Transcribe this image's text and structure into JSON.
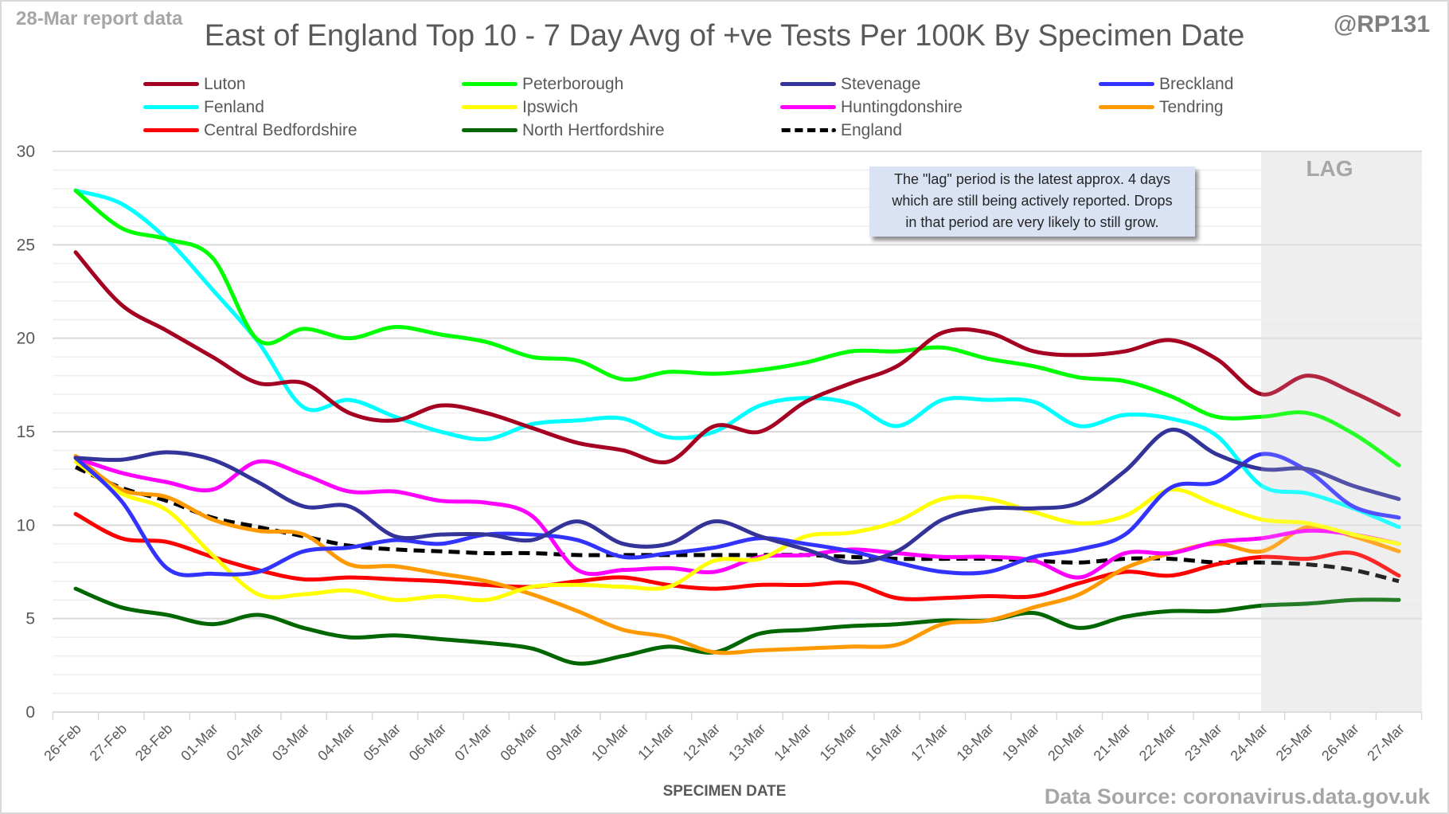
{
  "header": {
    "report_label": "28-Mar report data",
    "handle": "@RP131",
    "source": "Data Source: coronavirus.data.gov.uk"
  },
  "note": {
    "lines": [
      "The \"lag\" period is the latest approx. 4 days",
      "which are still being actively reported.  Drops",
      "in that period are very likely to still grow."
    ]
  },
  "chart_data": {
    "type": "line",
    "title": "East of England Top 10 - 7 Day Avg of +ve Tests Per 100K By Specimen Date",
    "xlabel": "SPECIMEN DATE",
    "ylabel": "",
    "ylim": [
      0,
      30
    ],
    "yticks": [
      0,
      5,
      10,
      15,
      20,
      25,
      30
    ],
    "grid": true,
    "minor_grid_step": 1,
    "legend_position": "top",
    "lag_region": {
      "label": "LAG",
      "start": "24-Mar",
      "end": "27-Mar",
      "color": "#ebebeb"
    },
    "x": [
      "26-Feb",
      "27-Feb",
      "28-Feb",
      "01-Mar",
      "02-Mar",
      "03-Mar",
      "04-Mar",
      "05-Mar",
      "06-Mar",
      "07-Mar",
      "08-Mar",
      "09-Mar",
      "10-Mar",
      "11-Mar",
      "12-Mar",
      "13-Mar",
      "14-Mar",
      "15-Mar",
      "16-Mar",
      "17-Mar",
      "18-Mar",
      "19-Mar",
      "20-Mar",
      "21-Mar",
      "22-Mar",
      "23-Mar",
      "24-Mar",
      "25-Mar",
      "26-Mar",
      "27-Mar"
    ],
    "series": [
      {
        "name": "Luton",
        "color": "#a50021",
        "dashed": false,
        "values": [
          24.6,
          21.8,
          20.4,
          19.0,
          17.6,
          17.6,
          16.0,
          15.6,
          16.4,
          16.0,
          15.2,
          14.4,
          14.0,
          13.4,
          15.3,
          15.0,
          16.6,
          17.6,
          18.5,
          20.3,
          20.3,
          19.3,
          19.1,
          19.3,
          19.9,
          18.9,
          17.0,
          18.0,
          17.1,
          15.9
        ]
      },
      {
        "name": "Peterborough",
        "color": "#00ff00",
        "dashed": false,
        "values": [
          27.9,
          25.9,
          25.3,
          24.3,
          19.9,
          20.5,
          20.0,
          20.6,
          20.2,
          19.8,
          19.0,
          18.8,
          17.8,
          18.2,
          18.1,
          18.3,
          18.7,
          19.3,
          19.3,
          19.5,
          18.9,
          18.5,
          17.9,
          17.7,
          16.9,
          15.8,
          15.8,
          16.0,
          14.9,
          13.2
        ]
      },
      {
        "name": "Stevenage",
        "color": "#333399",
        "dashed": false,
        "values": [
          13.6,
          13.5,
          13.9,
          13.5,
          12.3,
          11.0,
          11.0,
          9.4,
          9.5,
          9.5,
          9.2,
          10.2,
          9.0,
          9.0,
          10.2,
          9.4,
          8.7,
          8.0,
          8.6,
          10.3,
          10.9,
          10.9,
          11.2,
          12.9,
          15.1,
          13.8,
          13.0,
          13.0,
          12.1,
          11.4
        ]
      },
      {
        "name": "Breckland",
        "color": "#3333ff",
        "dashed": false,
        "values": [
          13.6,
          11.3,
          7.7,
          7.4,
          7.5,
          8.6,
          8.8,
          9.2,
          9.0,
          9.5,
          9.5,
          9.2,
          8.3,
          8.5,
          8.8,
          9.3,
          9.0,
          8.6,
          8.0,
          7.5,
          7.5,
          8.3,
          8.7,
          9.5,
          12.0,
          12.3,
          13.8,
          12.9,
          11.0,
          10.4
        ]
      },
      {
        "name": "Fenland",
        "color": "#00ffff",
        "dashed": false,
        "values": [
          27.9,
          27.2,
          25.3,
          22.6,
          19.8,
          16.3,
          16.7,
          15.8,
          15.0,
          14.6,
          15.4,
          15.6,
          15.7,
          14.7,
          15.0,
          16.4,
          16.8,
          16.5,
          15.3,
          16.7,
          16.7,
          16.6,
          15.3,
          15.9,
          15.7,
          14.8,
          12.1,
          11.7,
          10.9,
          9.9
        ]
      },
      {
        "name": "Ipswich",
        "color": "#ffff00",
        "dashed": false,
        "values": [
          13.4,
          11.7,
          10.8,
          8.4,
          6.3,
          6.3,
          6.5,
          6.0,
          6.2,
          6.0,
          6.7,
          6.8,
          6.7,
          6.7,
          8.1,
          8.2,
          9.4,
          9.6,
          10.2,
          11.4,
          11.4,
          10.7,
          10.1,
          10.5,
          11.9,
          11.1,
          10.3,
          10.1,
          9.5,
          9.0
        ]
      },
      {
        "name": "Huntingdonshire",
        "color": "#ff00ff",
        "dashed": false,
        "values": [
          13.6,
          12.8,
          12.3,
          11.9,
          13.4,
          12.7,
          11.8,
          11.8,
          11.3,
          11.2,
          10.5,
          7.6,
          7.6,
          7.7,
          7.5,
          8.3,
          8.4,
          8.7,
          8.5,
          8.3,
          8.3,
          8.1,
          7.2,
          8.5,
          8.5,
          9.1,
          9.3,
          9.7,
          9.5,
          9.0
        ]
      },
      {
        "name": "Tendring",
        "color": "#ff9900",
        "dashed": false,
        "values": [
          13.7,
          11.9,
          11.5,
          10.3,
          9.7,
          9.5,
          7.9,
          7.8,
          7.4,
          7.0,
          6.3,
          5.4,
          4.4,
          4.0,
          3.2,
          3.3,
          3.4,
          3.5,
          3.6,
          4.7,
          4.9,
          5.6,
          6.3,
          7.7,
          8.5,
          9.0,
          8.6,
          9.9,
          9.4,
          8.6
        ]
      },
      {
        "name": "Central Bedfordshire",
        "color": "#ff0000",
        "dashed": false,
        "values": [
          10.6,
          9.3,
          9.1,
          8.3,
          7.6,
          7.1,
          7.2,
          7.1,
          7.0,
          6.8,
          6.7,
          7.0,
          7.2,
          6.8,
          6.6,
          6.8,
          6.8,
          6.9,
          6.1,
          6.1,
          6.2,
          6.2,
          6.9,
          7.5,
          7.3,
          7.9,
          8.3,
          8.2,
          8.5,
          7.3
        ]
      },
      {
        "name": "North Hertfordshire",
        "color": "#006600",
        "dashed": false,
        "values": [
          6.6,
          5.6,
          5.2,
          4.7,
          5.2,
          4.5,
          4.0,
          4.1,
          3.9,
          3.7,
          3.4,
          2.6,
          3.0,
          3.5,
          3.2,
          4.2,
          4.4,
          4.6,
          4.7,
          4.9,
          4.9,
          5.3,
          4.5,
          5.1,
          5.4,
          5.4,
          5.7,
          5.8,
          6.0,
          6.0
        ]
      },
      {
        "name": "England",
        "color": "#000000",
        "dashed": true,
        "values": [
          13.1,
          12.0,
          11.3,
          10.4,
          9.9,
          9.4,
          8.9,
          8.7,
          8.6,
          8.5,
          8.5,
          8.4,
          8.4,
          8.4,
          8.4,
          8.4,
          8.4,
          8.3,
          8.2,
          8.2,
          8.2,
          8.1,
          8.0,
          8.2,
          8.2,
          8.0,
          8.0,
          7.9,
          7.6,
          7.0
        ]
      }
    ]
  }
}
